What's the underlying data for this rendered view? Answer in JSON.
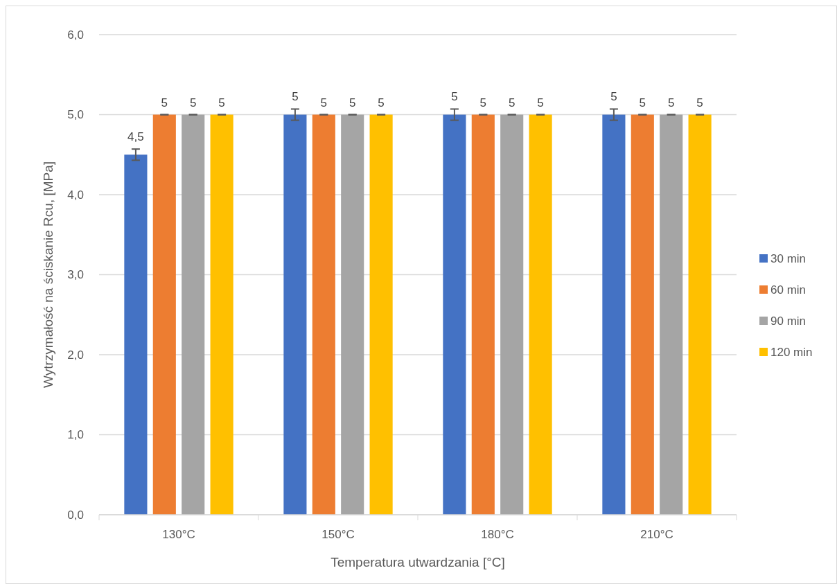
{
  "chart_data": {
    "type": "bar",
    "xlabel": "Temperatura utwardzania [°C]",
    "ylabel": "Wytrzymałość na ściskanie Rcu, [MPa]",
    "categories": [
      "130°C",
      "150°C",
      "180°C",
      "210°C"
    ],
    "series": [
      {
        "name": "30 min",
        "color": "#4472c4",
        "values": [
          4.5,
          5,
          5,
          5
        ],
        "errors": [
          0.07,
          0.07,
          0.07,
          0.07
        ],
        "value_labels": [
          "4,5",
          "5",
          "5",
          "5"
        ]
      },
      {
        "name": "60 min",
        "color": "#ed7d31",
        "values": [
          5,
          5,
          5,
          5
        ],
        "errors": [
          0,
          0,
          0,
          0
        ],
        "value_labels": [
          "5",
          "5",
          "5",
          "5"
        ]
      },
      {
        "name": "90 min",
        "color": "#a5a5a5",
        "values": [
          5,
          5,
          5,
          5
        ],
        "errors": [
          0,
          0,
          0,
          0
        ],
        "value_labels": [
          "5",
          "5",
          "5",
          "5"
        ]
      },
      {
        "name": "120 min",
        "color": "#ffc000",
        "values": [
          5,
          5,
          5,
          5
        ],
        "errors": [
          0,
          0,
          0,
          0
        ],
        "value_labels": [
          "5",
          "5",
          "5",
          "5"
        ]
      }
    ],
    "ylim": [
      0,
      6
    ],
    "yticks": [
      {
        "value": 0,
        "label": "0,0"
      },
      {
        "value": 1,
        "label": "1,0"
      },
      {
        "value": 2,
        "label": "2,0"
      },
      {
        "value": 3,
        "label": "3,0"
      },
      {
        "value": 4,
        "label": "4,0"
      },
      {
        "value": 5,
        "label": "5,0"
      },
      {
        "value": 6,
        "label": "6,0"
      }
    ],
    "grid": "y",
    "legend": "right"
  }
}
